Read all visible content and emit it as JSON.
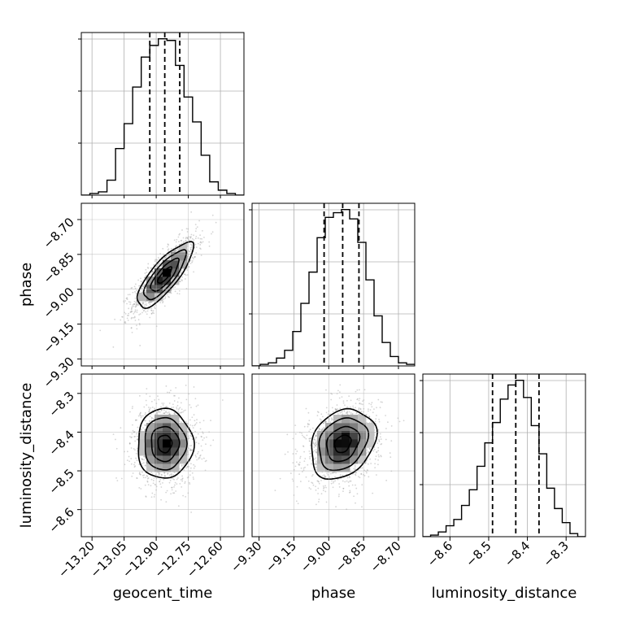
{
  "chart_data": {
    "type": "corner",
    "parameters": [
      {
        "name": "geocent_time",
        "label": "geocent_time",
        "range": [
          -13.25,
          -12.49
        ],
        "ticks": [
          "−13.20",
          "−13.05",
          "−12.90",
          "−12.75",
          "−12.60"
        ],
        "tick_values": [
          -13.2,
          -13.05,
          -12.9,
          -12.75,
          -12.6
        ],
        "quantiles": [
          -12.93,
          -12.86,
          -12.79
        ],
        "hist_edges": [
          -13.25,
          -13.21,
          -13.17,
          -13.13,
          -13.09,
          -13.05,
          -13.01,
          -12.97,
          -12.93,
          -12.89,
          -12.85,
          -12.81,
          -12.77,
          -12.73,
          -12.69,
          -12.65,
          -12.61,
          -12.57,
          -12.53,
          -12.49
        ],
        "hist_counts": [
          0,
          1,
          2,
          9,
          28,
          43,
          65,
          83,
          90,
          94,
          93,
          78,
          59,
          44,
          24,
          8,
          3,
          1,
          0
        ]
      },
      {
        "name": "phase",
        "label": "phase",
        "range": [
          -9.33,
          -8.63
        ],
        "ticks": [
          "−9.30",
          "−9.15",
          "−9.00",
          "−8.85",
          "−8.70"
        ],
        "tick_values": [
          -9.3,
          -9.15,
          -9.0,
          -8.85,
          -8.7
        ],
        "quantiles": [
          -9.02,
          -8.94,
          -8.87
        ],
        "hist_edges": [
          -9.33,
          -9.295,
          -9.26,
          -9.225,
          -9.19,
          -9.155,
          -9.12,
          -9.085,
          -9.05,
          -9.015,
          -8.98,
          -8.945,
          -8.91,
          -8.875,
          -8.84,
          -8.805,
          -8.77,
          -8.735,
          -8.7,
          -8.665,
          -8.63
        ],
        "hist_counts": [
          0,
          1,
          2,
          5,
          10,
          22,
          40,
          60,
          82,
          95,
          98,
          100,
          94,
          79,
          55,
          32,
          15,
          6,
          2,
          1
        ]
      },
      {
        "name": "luminosity_distance",
        "label": "luminosity_distance",
        "range": [
          -8.67,
          -8.25
        ],
        "ticks": [
          "−8.6",
          "−8.5",
          "−8.4",
          "−8.3"
        ],
        "tick_values": [
          -8.6,
          -8.5,
          -8.4,
          -8.3
        ],
        "quantiles": [
          -8.49,
          -8.43,
          -8.37
        ],
        "hist_edges": [
          -8.67,
          -8.65,
          -8.63,
          -8.61,
          -8.59,
          -8.57,
          -8.55,
          -8.53,
          -8.51,
          -8.49,
          -8.47,
          -8.45,
          -8.43,
          -8.41,
          -8.39,
          -8.37,
          -8.35,
          -8.33,
          -8.31,
          -8.29,
          -8.27,
          -8.25
        ],
        "hist_counts": [
          0,
          1,
          3,
          7,
          11,
          20,
          30,
          45,
          60,
          73,
          88,
          97,
          100,
          89,
          71,
          53,
          31,
          18,
          9,
          2,
          0
        ]
      }
    ],
    "pairs": [
      {
        "x": "geocent_time",
        "y": "phase",
        "mean": [
          -12.86,
          -8.94
        ],
        "sd": [
          0.065,
          0.07
        ],
        "rho": 0.8
      },
      {
        "x": "geocent_time",
        "y": "luminosity_distance",
        "mean": [
          -12.86,
          -8.43
        ],
        "sd": [
          0.065,
          0.045
        ],
        "rho": 0.0
      },
      {
        "x": "phase",
        "y": "luminosity_distance",
        "mean": [
          -8.94,
          -8.43
        ],
        "sd": [
          0.07,
          0.045
        ],
        "rho": 0.25
      }
    ],
    "grid": true,
    "title": "",
    "colors": {
      "line": "#000000",
      "grid": "#b0b0b0",
      "scatter": "#888888"
    }
  }
}
